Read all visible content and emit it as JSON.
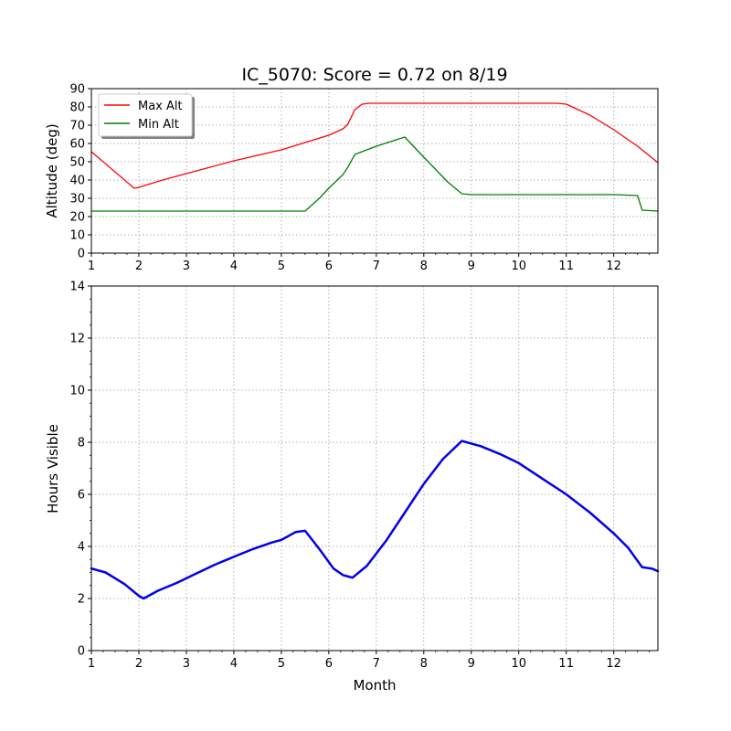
{
  "title": "IC_5070: Score = 0.72 on 8/19",
  "colors": {
    "max_alt": "#ff0000",
    "min_alt": "#008000",
    "hours": "#0000ee",
    "grid": "#b0b0b0"
  },
  "chart_data": [
    {
      "type": "line",
      "title": "IC_5070: Score = 0.72 on 8/19",
      "xlabel": "",
      "ylabel": "Altitude (deg)",
      "xlim": [
        1,
        12.93
      ],
      "ylim": [
        0,
        90
      ],
      "xticks": [
        "1",
        "2",
        "3",
        "4",
        "5",
        "6",
        "7",
        "8",
        "9",
        "10",
        "11",
        "12"
      ],
      "yticks": [
        "0",
        "10",
        "20",
        "30",
        "40",
        "50",
        "60",
        "70",
        "80",
        "90"
      ],
      "grid": true,
      "legend": "top-left",
      "series": [
        {
          "name": "Max Alt",
          "color": "#ff0000",
          "x": [
            1.0,
            1.9,
            2.0,
            2.5,
            3.0,
            4.0,
            5.0,
            6.0,
            6.3,
            6.4,
            6.55,
            6.7,
            6.85,
            7.5,
            8.0,
            9.0,
            10.0,
            10.8,
            11.0,
            11.5,
            12.0,
            12.5,
            12.93
          ],
          "y": [
            55.5,
            35.5,
            36,
            40,
            43.5,
            50.5,
            56.5,
            64.5,
            68,
            70.5,
            78.5,
            81.5,
            82,
            82,
            82,
            82,
            82,
            82,
            81.5,
            75.5,
            67.5,
            58.5,
            49.5
          ]
        },
        {
          "name": "Min Alt",
          "color": "#008000",
          "x": [
            1.0,
            2.0,
            3.0,
            4.0,
            5.0,
            5.5,
            5.8,
            6.0,
            6.3,
            6.4,
            6.55,
            7.0,
            7.6,
            8.0,
            8.5,
            8.8,
            9.0,
            10.0,
            11.0,
            12.0,
            12.5,
            12.6,
            12.93
          ],
          "y": [
            23,
            23,
            23,
            23,
            23,
            23,
            30,
            35.5,
            43,
            47,
            54,
            58.5,
            63.5,
            52.5,
            39,
            32.5,
            32,
            32,
            32,
            32,
            31.5,
            23.5,
            23
          ]
        }
      ]
    },
    {
      "type": "line",
      "xlabel": "Month",
      "ylabel": "Hours Visible",
      "xlim": [
        1,
        12.93
      ],
      "ylim": [
        0,
        14
      ],
      "xticks": [
        "1",
        "2",
        "3",
        "4",
        "5",
        "6",
        "7",
        "8",
        "9",
        "10",
        "11",
        "12"
      ],
      "yticks": [
        "0",
        "2",
        "4",
        "6",
        "8",
        "10",
        "12",
        "14"
      ],
      "grid": true,
      "series": [
        {
          "color": "#0000ee",
          "x": [
            1.0,
            1.3,
            1.7,
            2.0,
            2.1,
            2.4,
            2.8,
            3.2,
            3.6,
            4.0,
            4.4,
            4.8,
            5.0,
            5.3,
            5.5,
            5.8,
            6.1,
            6.3,
            6.5,
            6.8,
            7.2,
            7.6,
            8.0,
            8.4,
            8.8,
            9.2,
            9.6,
            10.0,
            10.5,
            11.0,
            11.5,
            12.0,
            12.3,
            12.6,
            12.8,
            12.93
          ],
          "y": [
            3.15,
            3.0,
            2.55,
            2.1,
            2.0,
            2.3,
            2.6,
            2.95,
            3.3,
            3.6,
            3.9,
            4.15,
            4.25,
            4.55,
            4.6,
            3.9,
            3.15,
            2.9,
            2.8,
            3.25,
            4.2,
            5.3,
            6.4,
            7.35,
            8.05,
            7.85,
            7.55,
            7.2,
            6.6,
            6.0,
            5.3,
            4.5,
            3.95,
            3.2,
            3.15,
            3.05
          ]
        }
      ]
    }
  ]
}
